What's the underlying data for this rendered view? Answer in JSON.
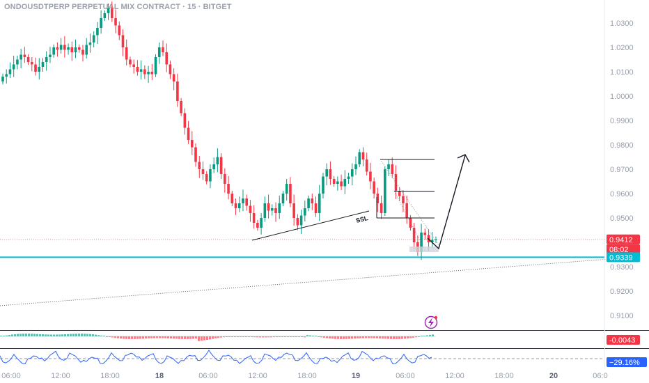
{
  "header": {
    "title": "ONDOUSDTPERP PERPETUAL MIX CONTRACT · 15 · BITGET"
  },
  "colors": {
    "up": "#089981",
    "down": "#f23645",
    "accent_line": "#00bcd4",
    "oscillator": "#2962ff",
    "price_label": "#f23645"
  },
  "icons": [
    "lightning-icon"
  ],
  "chart_data": {
    "type": "candlestick",
    "title": "ONDOUSDTPERP PERPETUAL MIX CONTRACT · 15 · BITGET",
    "y_ticks": [
      "1.0300",
      "1.0200",
      "1.0100",
      "1.0000",
      "0.9900",
      "0.9800",
      "0.9700",
      "0.9600",
      "0.9500",
      "0.9300",
      "0.9200",
      "0.9100"
    ],
    "ylim": [
      0.9085,
      1.0385
    ],
    "x_ticks": [
      "06:00",
      "12:00",
      "18:00",
      "18",
      "06:00",
      "12:00",
      "18:00",
      "19",
      "06:00",
      "12:00",
      "18:00",
      "20",
      "06:0"
    ],
    "price_labels": {
      "last_price": "0.9412",
      "countdown": "08:02",
      "level": "0.9339"
    },
    "horizontal_level": 0.9339,
    "annotations": {
      "ssl_label": "SSL"
    },
    "trend_line_points": [
      [
        0.9395,
        0.946
      ],
      [
        0.933,
        0.9346
      ]
    ],
    "path_anchors": [
      0.95,
      0.961,
      0.974,
      0.9412,
      0.979
    ],
    "candle_closes": [
      1.008,
      1.009,
      1.011,
      1.013,
      1.015,
      1.017,
      1.016,
      1.014,
      1.013,
      1.01,
      1.012,
      1.014,
      1.016,
      1.017,
      1.02,
      1.019,
      1.021,
      1.019,
      1.02,
      1.018,
      1.02,
      1.019,
      1.017,
      1.021,
      1.022,
      1.025,
      1.028,
      1.032,
      1.034,
      1.036,
      1.032,
      1.029,
      1.025,
      1.02,
      1.015,
      1.013,
      1.012,
      1.01,
      1.011,
      1.009,
      1.01,
      1.009,
      1.016,
      1.02,
      1.018,
      1.013,
      1.009,
      1.006,
      0.998,
      0.993,
      0.987,
      0.982,
      0.979,
      0.973,
      0.97,
      0.968,
      0.965,
      0.97,
      0.972,
      0.975,
      0.968,
      0.964,
      0.96,
      0.956,
      0.954,
      0.956,
      0.958,
      0.955,
      0.952,
      0.948,
      0.946,
      0.95,
      0.956,
      0.953,
      0.954,
      0.952,
      0.956,
      0.96,
      0.964,
      0.956,
      0.95,
      0.947,
      0.951,
      0.954,
      0.958,
      0.956,
      0.952,
      0.96,
      0.967,
      0.97,
      0.966,
      0.964,
      0.965,
      0.963,
      0.966,
      0.967,
      0.97,
      0.972,
      0.977,
      0.974,
      0.969,
      0.965,
      0.96,
      0.956,
      0.952,
      0.97,
      0.972,
      0.968,
      0.961,
      0.959,
      0.956,
      0.95,
      0.946,
      0.94,
      0.936,
      0.944,
      0.943,
      0.94,
      0.941,
      0.9412
    ],
    "oscillator_1": {
      "type": "histogram",
      "value_label": "-0.0043"
    },
    "oscillator_2": {
      "type": "line",
      "value_label": "−29.16%"
    }
  }
}
